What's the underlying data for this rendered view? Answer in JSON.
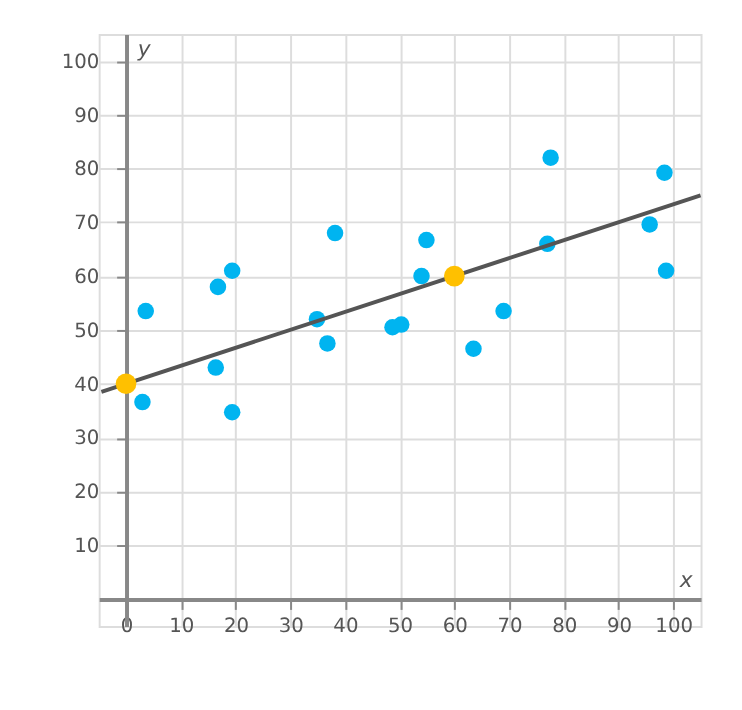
{
  "chart_data": {
    "type": "scatter",
    "xlabel": "x",
    "ylabel": "y",
    "xlim": [
      -5,
      105
    ],
    "ylim": [
      -5,
      105
    ],
    "xticks": [
      0,
      10,
      20,
      30,
      40,
      50,
      60,
      70,
      80,
      90,
      100
    ],
    "yticks": [
      {
        "value": 0,
        "label": null
      },
      10,
      20,
      30,
      40,
      50,
      60,
      70,
      80,
      90,
      100
    ],
    "grid": true,
    "series": [
      {
        "marker": "circle",
        "color": "#00b4f0",
        "x": [
          3.6,
          3,
          16.8,
          19.4,
          16.4,
          19.4,
          38.2,
          34.9,
          36.8,
          48.7,
          50.3,
          54.9,
          54,
          69,
          63.5,
          77.6,
          77,
          95.7,
          98.4,
          98.7
        ],
        "values": [
          53.5,
          36.6,
          58,
          61,
          43,
          34.7,
          68,
          52,
          47.5,
          50.5,
          51,
          66.7,
          60,
          53.5,
          46.5,
          82,
          66,
          69.6,
          79.2,
          61
        ]
      },
      {
        "type": "line",
        "color": "#555555",
        "x": [
          -4.5,
          105
        ],
        "values": [
          38.5,
          75
        ]
      },
      {
        "marker": "circle",
        "color": "#ffc000",
        "x": [
          0,
          60
        ],
        "values": [
          40,
          60
        ]
      }
    ]
  }
}
